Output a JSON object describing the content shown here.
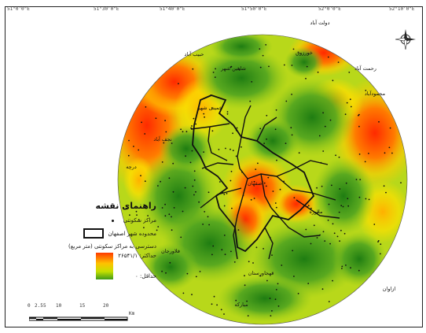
{
  "legend": {
    "title": "راهنمای نقشه",
    "items": [
      {
        "label": "مراکز سکونتی",
        "symbol": "dot"
      },
      {
        "label": "محدوده شهر اصفهان",
        "symbol": "box"
      }
    ],
    "ramp_title": "دسترسی به مراکز سکونتی (متر مربع)",
    "ramp_max": "حداکثر: ۲۶۵۴۱/۱",
    "ramp_min": "حداقل: ۰",
    "colors": {
      "high": "#ff3a00",
      "mid": "#ffc200",
      "low": "#3f9a1a"
    }
  },
  "axis_ticks": [
    "51°0'0\"E",
    "51°30'0\"E",
    "51°40'0\"E",
    "51°50'0\"E",
    "52°0'0\"E",
    "52°10'0\"E"
  ],
  "scale": {
    "labels": [
      "0",
      "2.5",
      "5",
      "10",
      "15",
      "20"
    ],
    "unit": "Km"
  },
  "place_labels": [
    {
      "text": "دولت آباد"
    },
    {
      "text": "رحمت آباد"
    },
    {
      "text": "محمودآباد"
    },
    {
      "text": "خورزوق"
    },
    {
      "text": "حبیب آباد"
    },
    {
      "text": "شاهین شهر"
    },
    {
      "text": "اصفهان"
    },
    {
      "text": "ملاوره"
    },
    {
      "text": "قهجاورستان"
    },
    {
      "text": "ازاوان"
    },
    {
      "text": "فلاورجان"
    },
    {
      "text": "مبارکه"
    },
    {
      "text": "نجف آباد"
    },
    {
      "text": "درچه"
    },
    {
      "text": "خمینی شهر"
    }
  ]
}
